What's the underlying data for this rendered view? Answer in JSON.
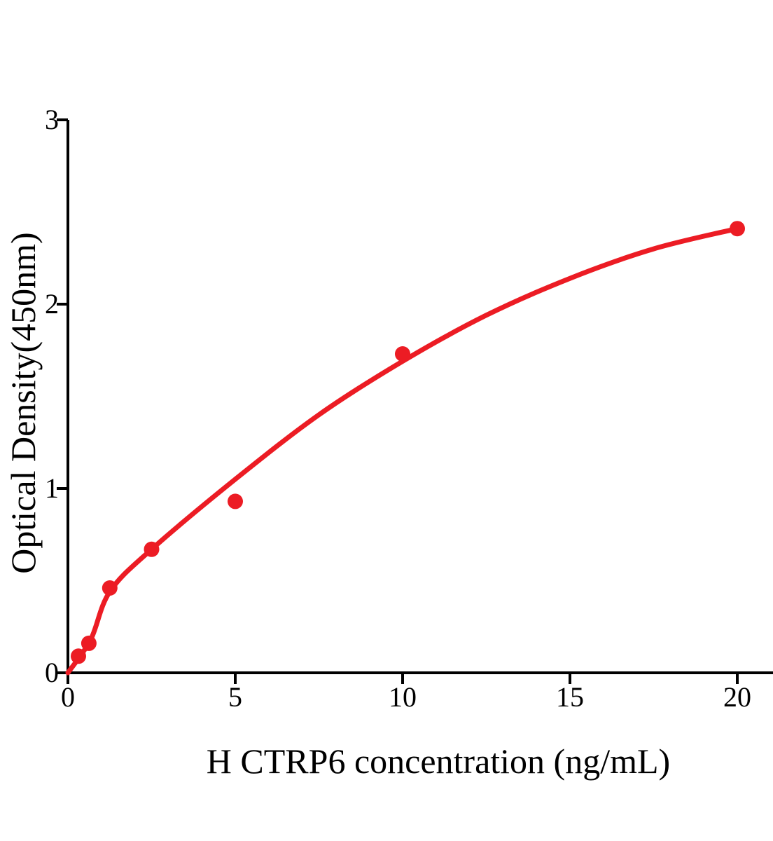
{
  "figure": {
    "background": "#ffffff"
  },
  "chart_data": {
    "type": "scatter",
    "title": "",
    "xlabel": "H CTRP6 concentration (ng/mL)",
    "ylabel": "Optical Density(450nm)",
    "x_ticks": [
      0,
      5,
      10,
      15,
      20
    ],
    "y_ticks": [
      0,
      1,
      2,
      3
    ],
    "xlim": [
      0,
      21
    ],
    "ylim": [
      0,
      3
    ],
    "legend": "none",
    "grid": false,
    "points": [
      {
        "x": 0.313,
        "y": 0.09
      },
      {
        "x": 0.625,
        "y": 0.16
      },
      {
        "x": 1.25,
        "y": 0.46
      },
      {
        "x": 2.5,
        "y": 0.67
      },
      {
        "x": 5,
        "y": 0.93
      },
      {
        "x": 10,
        "y": 1.73
      },
      {
        "x": 20,
        "y": 2.41
      }
    ],
    "fit_curve": [
      {
        "x": 0,
        "y": 0
      },
      {
        "x": 0.68,
        "y": 0.18
      },
      {
        "x": 1.25,
        "y": 0.44
      },
      {
        "x": 2.5,
        "y": 0.67
      },
      {
        "x": 5,
        "y": 1.05
      },
      {
        "x": 7.5,
        "y": 1.4
      },
      {
        "x": 10,
        "y": 1.69
      },
      {
        "x": 12.5,
        "y": 1.94
      },
      {
        "x": 15,
        "y": 2.14
      },
      {
        "x": 17.5,
        "y": 2.3
      },
      {
        "x": 20,
        "y": 2.41
      }
    ],
    "point_color": "#ec1c24",
    "curve_color": "#ec1c24",
    "axis_color": "#000000"
  }
}
